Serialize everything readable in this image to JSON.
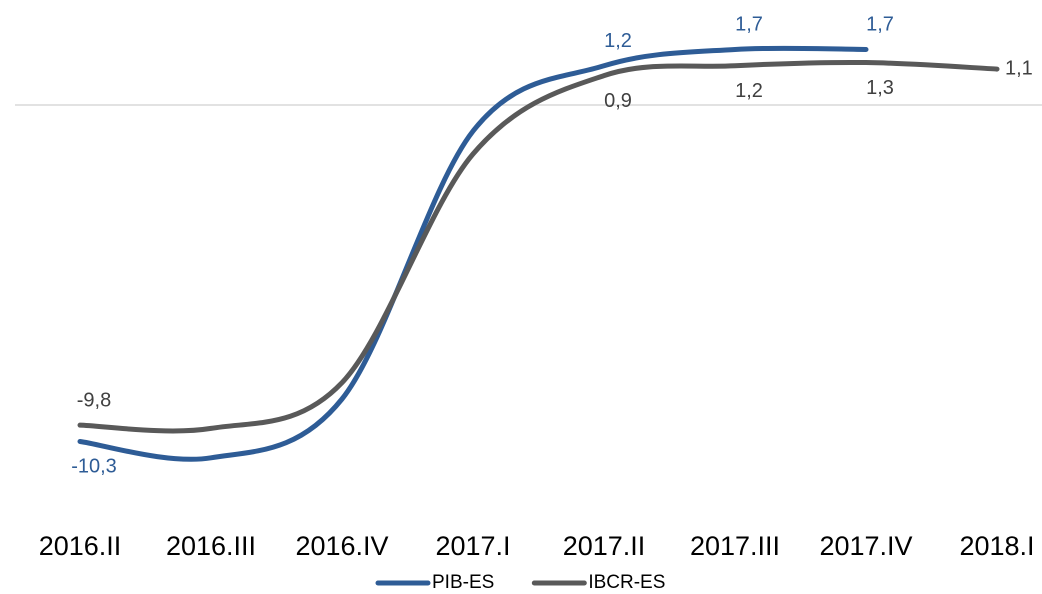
{
  "chart_data": {
    "type": "line",
    "categories": [
      "2016.II",
      "2016.III",
      "2016.IV",
      "2017.I",
      "2017.II",
      "2017.III",
      "2017.IV",
      "2018.I"
    ],
    "series": [
      {
        "name": "PIB-ES",
        "color": "#2e5c96",
        "values": [
          -10.3,
          -10.8,
          -9.0,
          -0.8,
          1.2,
          1.7,
          1.7,
          null
        ],
        "value_labels": [
          "-10,3",
          null,
          null,
          null,
          "1,2",
          "1,7",
          "1,7",
          null
        ]
      },
      {
        "name": "IBCR-ES",
        "color": "#595959",
        "values": [
          -9.8,
          -9.9,
          -8.5,
          -1.5,
          0.9,
          1.2,
          1.3,
          1.1
        ],
        "value_labels": [
          "-9,8",
          null,
          null,
          null,
          "0,9",
          "1,2",
          "1,3",
          "1,1"
        ]
      }
    ],
    "ylim": [
      -12,
      3
    ]
  }
}
